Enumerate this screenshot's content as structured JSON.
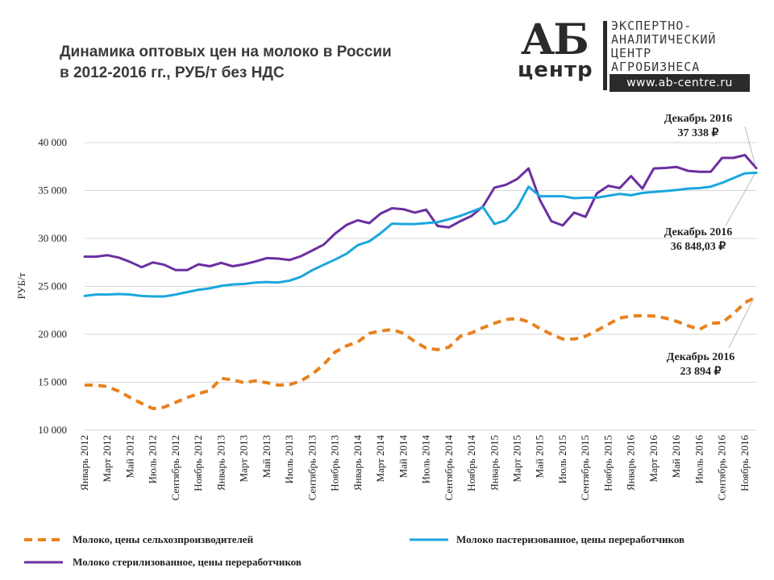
{
  "title": {
    "line1": "Динамика оптовых цен на молоко в России",
    "line2": "в 2012-2016 гг., РУБ/т без НДС"
  },
  "logo": {
    "mark_ab": "АБ",
    "mark_center": "центр",
    "lines": [
      "ЭКСПЕРТНО-",
      "АНАЛИТИЧЕСКИЙ",
      "ЦЕНТР",
      "АГРОБИЗНЕСА"
    ],
    "url": "www.ab-centre.ru"
  },
  "colors": {
    "farmers": "#e8821e",
    "pasteurized": "#1aa7dc",
    "sterilized": "#6b2fa0",
    "grid": "#d6d6d6"
  },
  "chart_data": {
    "type": "line",
    "ylabel": "РУБ/т",
    "ylim": [
      10000,
      40000
    ],
    "yticks": [
      10000,
      15000,
      20000,
      25000,
      30000,
      35000,
      40000
    ],
    "ytick_labels": [
      "10 000",
      "15 000",
      "20 000",
      "25 000",
      "30 000",
      "35 000",
      "40 000"
    ],
    "grid": true,
    "legend_position": "bottom",
    "x_tick_labels": [
      "Январь 2012",
      "Март 2012",
      "Май 2012",
      "Июль 2012",
      "Сентябрь 2012",
      "Ноябрь 2012",
      "Январь 2013",
      "Март 2013",
      "Май 2013",
      "Июль 2013",
      "Сентябрь 2013",
      "Ноябрь 2013",
      "Январь 2014",
      "Март 2014",
      "Май 2014",
      "Июль 2014",
      "Сентябрь 2014",
      "Ноябрь 2014",
      "Январь 2015",
      "Март 2015",
      "Май 2015",
      "Июль 2015",
      "Сентябрь 2015",
      "Ноябрь 2015",
      "Январь 2016",
      "Март 2016",
      "Май 2016",
      "Июль 2016",
      "Сентябрь 2016",
      "Ноябрь 2016"
    ],
    "series": [
      {
        "name": "Молоко стерилизованное, цены переработчиков",
        "color": "#6b2fa0",
        "dash": false,
        "values": [
          28100,
          28100,
          28250,
          28000,
          27550,
          27000,
          27500,
          27250,
          26700,
          26700,
          27300,
          27100,
          27450,
          27100,
          27300,
          27600,
          27950,
          27900,
          27750,
          28150,
          28750,
          29350,
          30500,
          31400,
          31900,
          31600,
          32600,
          33150,
          33050,
          32700,
          33000,
          31300,
          31150,
          31800,
          32350,
          33350,
          35300,
          35600,
          36200,
          37300,
          34000,
          31800,
          31350,
          32700,
          32250,
          34700,
          35500,
          35250,
          36500,
          35200,
          37300,
          37350,
          37450,
          37050,
          36950,
          36950,
          38400,
          38400,
          38700,
          37338
        ]
      },
      {
        "name": "Молоко пастеризованное, цены переработчиков",
        "color": "#1aa7dc",
        "dash": false,
        "values": [
          24000,
          24150,
          24150,
          24200,
          24150,
          24000,
          23950,
          23950,
          24150,
          24400,
          24650,
          24800,
          25050,
          25200,
          25250,
          25400,
          25450,
          25400,
          25600,
          26000,
          26700,
          27250,
          27800,
          28400,
          29300,
          29700,
          30550,
          31550,
          31500,
          31500,
          31600,
          31700,
          32000,
          32350,
          32800,
          33250,
          31500,
          31900,
          33200,
          35400,
          34400,
          34400,
          34400,
          34200,
          34250,
          34250,
          34450,
          34650,
          34500,
          34750,
          34850,
          34950,
          35050,
          35200,
          35250,
          35400,
          35800,
          36300,
          36800,
          36848
        ]
      },
      {
        "name": "Молоко, цены сельхозпроизводителей",
        "color": "#e8821e",
        "dash": true,
        "values": [
          14700,
          14700,
          14550,
          14050,
          13400,
          12800,
          12250,
          12400,
          12900,
          13400,
          13800,
          14150,
          15400,
          15250,
          14950,
          15150,
          14950,
          14700,
          14750,
          15150,
          15850,
          16850,
          18150,
          18800,
          19200,
          20100,
          20350,
          20500,
          20100,
          19250,
          18550,
          18400,
          18650,
          19800,
          20150,
          20700,
          21150,
          21550,
          21650,
          21300,
          20600,
          20000,
          19500,
          19500,
          19800,
          20400,
          21050,
          21700,
          21900,
          21950,
          21900,
          21700,
          21350,
          20900,
          20500,
          21150,
          21200,
          22150,
          23300,
          23894
        ]
      }
    ],
    "annotations": [
      {
        "label": "Декабрь 2016",
        "value": "37 338 ₽"
      },
      {
        "label": "Декабрь 2016",
        "value": "36 848,03 ₽"
      },
      {
        "label": "Декабрь 2016",
        "value": "23 894 ₽"
      }
    ]
  }
}
